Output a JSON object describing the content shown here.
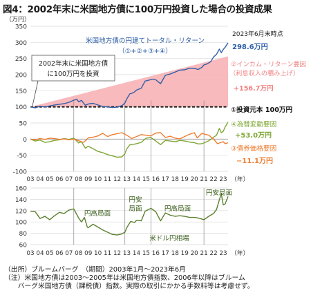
{
  "title": "図4：2002年末に米国地方債に100万円投資した場合の投資成果",
  "chart_data": [
    {
      "type": "line",
      "title": "",
      "unit_label": "（万円）",
      "ylim": [
        -100,
        350
      ],
      "yticks": [
        -100,
        -50,
        0,
        50,
        100,
        150,
        200,
        250,
        300,
        350
      ],
      "xlim": [
        2003.0,
        2023.5
      ],
      "x_tick_labels": [
        "03",
        "04",
        "05",
        "06",
        "07",
        "08",
        "09",
        "10",
        "11",
        "12",
        "13",
        "14",
        "15",
        "16",
        "17",
        "18",
        "19",
        "20",
        "21",
        "22",
        "23"
      ],
      "x_axis_suffix": "（年）",
      "principal_line": 100,
      "series": [
        {
          "name": "米国地方債の円建てトータル・リターン （①+②+③+④）",
          "color": "#2f5fa8",
          "points": [
            [
              2003.0,
              100
            ],
            [
              2003.5,
              97
            ],
            [
              2004.0,
              102
            ],
            [
              2004.5,
              99
            ],
            [
              2005.0,
              103
            ],
            [
              2005.5,
              106
            ],
            [
              2006.0,
              108
            ],
            [
              2006.5,
              110
            ],
            [
              2007.0,
              114
            ],
            [
              2007.5,
              121
            ],
            [
              2007.8,
              124
            ],
            [
              2008.0,
              116
            ],
            [
              2008.3,
              120
            ],
            [
              2008.7,
              105
            ],
            [
              2009.0,
              109
            ],
            [
              2009.5,
              111
            ],
            [
              2010.0,
              106
            ],
            [
              2010.5,
              101
            ],
            [
              2011.0,
              100
            ],
            [
              2011.5,
              98
            ],
            [
              2012.0,
              99
            ],
            [
              2012.5,
              104
            ],
            [
              2012.8,
              112
            ],
            [
              2013.0,
              125
            ],
            [
              2013.3,
              140
            ],
            [
              2013.7,
              144
            ],
            [
              2014.0,
              152
            ],
            [
              2014.5,
              158
            ],
            [
              2014.9,
              180
            ],
            [
              2015.3,
              183
            ],
            [
              2015.7,
              186
            ],
            [
              2016.0,
              184
            ],
            [
              2016.5,
              172
            ],
            [
              2017.0,
              198
            ],
            [
              2017.5,
              202
            ],
            [
              2018.0,
              208
            ],
            [
              2018.5,
              214
            ],
            [
              2019.0,
              215
            ],
            [
              2019.5,
              220
            ],
            [
              2020.0,
              219
            ],
            [
              2020.4,
              216
            ],
            [
              2020.8,
              223
            ],
            [
              2021.0,
              230
            ],
            [
              2021.3,
              233
            ],
            [
              2021.7,
              240
            ],
            [
              2022.0,
              255
            ],
            [
              2022.3,
              263
            ],
            [
              2022.6,
              279
            ],
            [
              2022.8,
              268
            ],
            [
              2023.0,
              278
            ],
            [
              2023.2,
              285
            ],
            [
              2023.5,
              298.6
            ]
          ]
        },
        {
          "name": "④為替変動要因",
          "color": "#7ea632",
          "points": [
            [
              2003.0,
              0
            ],
            [
              2003.5,
              -6
            ],
            [
              2004.0,
              -3
            ],
            [
              2004.5,
              -10
            ],
            [
              2005.0,
              -8
            ],
            [
              2005.5,
              -4
            ],
            [
              2006.0,
              -2
            ],
            [
              2006.5,
              2
            ],
            [
              2007.0,
              -1
            ],
            [
              2007.5,
              3
            ],
            [
              2008.0,
              -12
            ],
            [
              2008.3,
              -8
            ],
            [
              2008.7,
              -28
            ],
            [
              2009.0,
              -22
            ],
            [
              2009.5,
              -30
            ],
            [
              2010.0,
              -38
            ],
            [
              2010.5,
              -42
            ],
            [
              2011.0,
              -48
            ],
            [
              2011.5,
              -52
            ],
            [
              2012.0,
              -56
            ],
            [
              2012.5,
              -55
            ],
            [
              2012.8,
              -45
            ],
            [
              2013.0,
              -30
            ],
            [
              2013.3,
              -18
            ],
            [
              2013.7,
              -16
            ],
            [
              2014.0,
              -14
            ],
            [
              2014.5,
              -10
            ],
            [
              2015.0,
              3
            ],
            [
              2015.5,
              5
            ],
            [
              2016.0,
              -6
            ],
            [
              2016.5,
              -17
            ],
            [
              2017.0,
              -4
            ],
            [
              2017.5,
              -6
            ],
            [
              2018.0,
              -8
            ],
            [
              2018.5,
              -4
            ],
            [
              2019.0,
              -6
            ],
            [
              2019.5,
              -9
            ],
            [
              2020.0,
              -11
            ],
            [
              2020.4,
              -15
            ],
            [
              2020.8,
              -14
            ],
            [
              2021.0,
              -12
            ],
            [
              2021.5,
              -5
            ],
            [
              2022.0,
              6
            ],
            [
              2022.3,
              12
            ],
            [
              2022.6,
              33
            ],
            [
              2022.8,
              20
            ],
            [
              2023.0,
              24
            ],
            [
              2023.2,
              38
            ],
            [
              2023.5,
              53.0
            ]
          ]
        },
        {
          "name": "③債券価格要因",
          "color": "#ee7d30",
          "points": [
            [
              2003.0,
              0
            ],
            [
              2003.5,
              -2
            ],
            [
              2004.0,
              2
            ],
            [
              2004.5,
              -1
            ],
            [
              2005.0,
              3
            ],
            [
              2005.5,
              2
            ],
            [
              2006.0,
              -1
            ],
            [
              2006.5,
              1
            ],
            [
              2007.0,
              -2
            ],
            [
              2007.5,
              0
            ],
            [
              2008.0,
              -5
            ],
            [
              2008.5,
              -10
            ],
            [
              2008.8,
              -3
            ],
            [
              2009.0,
              4
            ],
            [
              2009.5,
              6
            ],
            [
              2010.0,
              10
            ],
            [
              2010.5,
              18
            ],
            [
              2011.0,
              8
            ],
            [
              2011.5,
              14
            ],
            [
              2012.0,
              17
            ],
            [
              2012.5,
              20
            ],
            [
              2013.0,
              12
            ],
            [
              2013.5,
              2
            ],
            [
              2014.0,
              8
            ],
            [
              2014.5,
              14
            ],
            [
              2015.0,
              12
            ],
            [
              2015.5,
              10
            ],
            [
              2016.0,
              19
            ],
            [
              2016.5,
              20
            ],
            [
              2017.0,
              5
            ],
            [
              2017.5,
              9
            ],
            [
              2018.0,
              3
            ],
            [
              2018.5,
              1
            ],
            [
              2019.0,
              8
            ],
            [
              2019.5,
              15
            ],
            [
              2020.0,
              20
            ],
            [
              2020.3,
              4
            ],
            [
              2020.8,
              18
            ],
            [
              2021.0,
              16
            ],
            [
              2021.5,
              12
            ],
            [
              2022.0,
              0
            ],
            [
              2022.4,
              -14
            ],
            [
              2022.8,
              -10
            ],
            [
              2023.0,
              -8
            ],
            [
              2023.2,
              -14
            ],
            [
              2023.5,
              -11.1
            ]
          ]
        }
      ],
      "pink_area": {
        "name": "②インカム・リターン要因 （利息収入の積み上げ）",
        "color": "#f7b2b5",
        "start": [
          2003.0,
          100
        ],
        "end": [
          2023.5,
          256.7
        ]
      },
      "annotations": {
        "date_label": "2023年6月末時点",
        "total_value": "298.6万円",
        "income_line1": "②インカム・リターン要因",
        "income_line2": "（利息収入の積み上げ）",
        "income_value": "+156.7万円",
        "principal_label": "①投資元本 100万円",
        "fx_label": "④為替変動要因",
        "fx_value": "+53.0万円",
        "price_label": "③債券価格要因",
        "price_value": "−11.1万円",
        "callout_line1": "2002年末に米国地方債",
        "callout_line2": "に100万円を投資",
        "total_line1": "米国地方債の円建てトータル・リターン",
        "total_line2": "（①+②+③+④）"
      },
      "vertical_lines_x": [
        2007.5,
        2012.8,
        2015.5,
        2021.0
      ]
    },
    {
      "type": "line",
      "title": "",
      "ylim": [
        60,
        160
      ],
      "yticks": [
        60,
        80,
        100,
        120,
        140,
        160
      ],
      "xlim": [
        2003.0,
        2023.5
      ],
      "x_tick_labels": [
        "03",
        "04",
        "05",
        "06",
        "07",
        "08",
        "09",
        "10",
        "11",
        "12",
        "13",
        "14",
        "15",
        "16",
        "17",
        "18",
        "19",
        "20",
        "21",
        "22",
        "23"
      ],
      "x_axis_suffix": "（年）",
      "series": [
        {
          "name": "米ドル円相場",
          "color": "#5b7f2d",
          "points": [
            [
              2003.0,
              119
            ],
            [
              2003.5,
              118
            ],
            [
              2004.0,
              106
            ],
            [
              2004.5,
              110
            ],
            [
              2005.0,
              104
            ],
            [
              2005.5,
              111
            ],
            [
              2006.0,
              117
            ],
            [
              2006.5,
              115
            ],
            [
              2007.0,
              121
            ],
            [
              2007.5,
              123
            ],
            [
              2008.0,
              107
            ],
            [
              2008.3,
              100
            ],
            [
              2008.6,
              108
            ],
            [
              2008.9,
              91
            ],
            [
              2009.0,
              90
            ],
            [
              2009.5,
              96
            ],
            [
              2010.0,
              91
            ],
            [
              2010.5,
              86
            ],
            [
              2011.0,
              82
            ],
            [
              2011.5,
              78
            ],
            [
              2012.0,
              77
            ],
            [
              2012.5,
              79
            ],
            [
              2012.8,
              82
            ],
            [
              2013.0,
              90
            ],
            [
              2013.4,
              101
            ],
            [
              2013.8,
              99
            ],
            [
              2014.0,
              103
            ],
            [
              2014.5,
              102
            ],
            [
              2014.9,
              119
            ],
            [
              2015.5,
              124
            ],
            [
              2016.0,
              118
            ],
            [
              2016.5,
              102
            ],
            [
              2017.0,
              116
            ],
            [
              2017.5,
              112
            ],
            [
              2018.0,
              110
            ],
            [
              2018.5,
              111
            ],
            [
              2019.0,
              110
            ],
            [
              2019.5,
              108
            ],
            [
              2020.0,
              108
            ],
            [
              2020.4,
              107
            ],
            [
              2020.8,
              105
            ],
            [
              2021.0,
              104
            ],
            [
              2021.5,
              110
            ],
            [
              2022.0,
              115
            ],
            [
              2022.3,
              122
            ],
            [
              2022.6,
              139
            ],
            [
              2022.8,
              150
            ],
            [
              2022.9,
              140
            ],
            [
              2023.0,
              130
            ],
            [
              2023.2,
              132
            ],
            [
              2023.5,
              145
            ]
          ]
        }
      ],
      "regions": [
        "円高局面",
        "円安局面",
        "円高局面",
        "円安局面"
      ],
      "vertical_lines_x": [
        2007.5,
        2012.8,
        2015.5,
        2021.0
      ]
    }
  ],
  "notes": [
    "（出所）ブルームバーグ　（期間）2003年1月〜2023年6月",
    "（注）米国地方債は2003〜2005年は米国地方債指数、2006年以降はブルーム",
    "　　バーグ米国地方債（課税債）指数。実際の取引にかかる手数料等は考慮せず。"
  ]
}
